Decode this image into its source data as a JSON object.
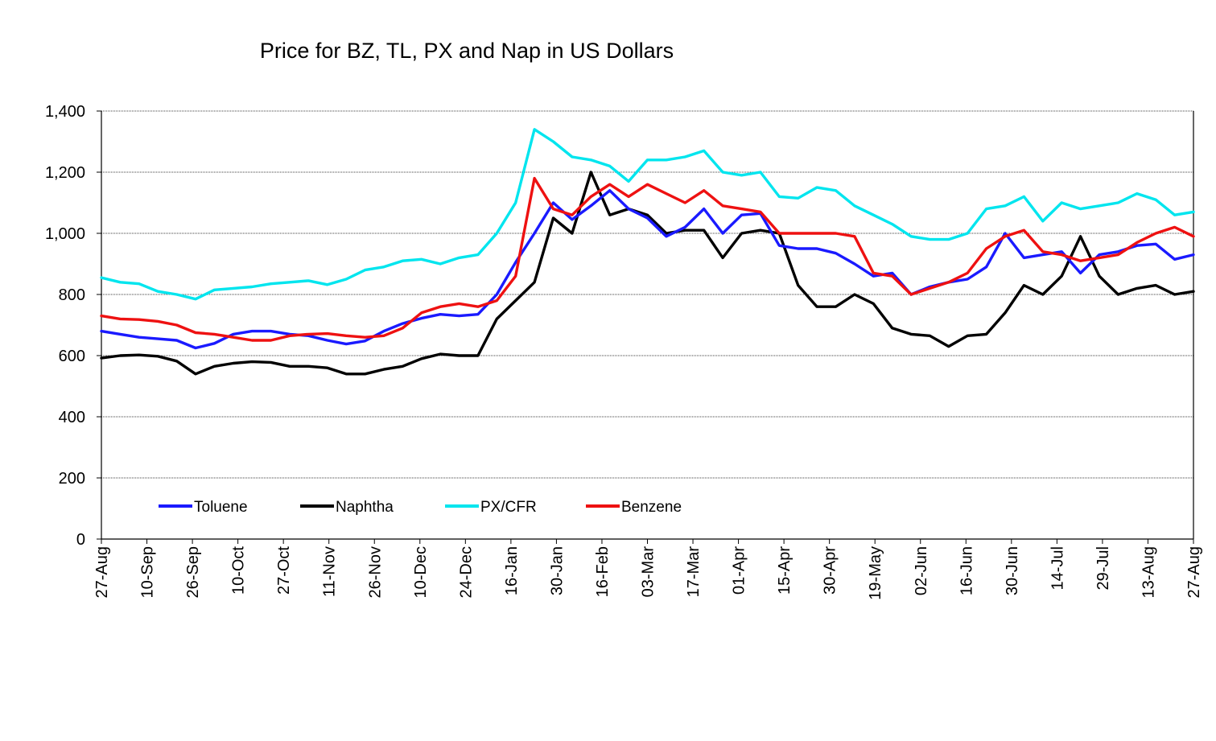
{
  "chart_data": {
    "type": "line",
    "title": "Price for BZ, TL, PX and Nap in US Dollars",
    "xlabel": "",
    "ylabel": "",
    "ylim": [
      0,
      1400
    ],
    "yticks": [
      0,
      200,
      400,
      600,
      800,
      1000,
      1200,
      1400
    ],
    "ytick_labels": [
      "0",
      "200",
      "400",
      "600",
      "800",
      "1,000",
      "1,200",
      "1,400"
    ],
    "x_tick_labels": [
      "27-Aug",
      "10-Sep",
      "26-Sep",
      "10-Oct",
      "27-Oct",
      "11-Nov",
      "26-Nov",
      "10-Dec",
      "24-Dec",
      "16-Jan",
      "30-Jan",
      "16-Feb",
      "03-Mar",
      "17-Mar",
      "01-Apr",
      "15-Apr",
      "30-Apr",
      "19-May",
      "02-Jun",
      "16-Jun",
      "30-Jun",
      "14-Jul",
      "29-Jul",
      "13-Aug",
      "27-Aug"
    ],
    "grid": "horizontal",
    "legend_position": "bottom-left",
    "series": [
      {
        "name": "Toluene",
        "color": "#1a1aff",
        "values": [
          680,
          670,
          660,
          655,
          650,
          625,
          640,
          670,
          680,
          680,
          670,
          665,
          650,
          638,
          648,
          680,
          705,
          722,
          735,
          730,
          735,
          800,
          905,
          1000,
          1100,
          1045,
          1090,
          1140,
          1080,
          1050,
          990,
          1020,
          1080,
          1000,
          1060,
          1065,
          960,
          950,
          950,
          935,
          900,
          860,
          870,
          800,
          825,
          840,
          850,
          890,
          1000,
          920,
          930,
          940,
          870,
          930,
          940,
          960,
          965,
          915,
          930
        ]
      },
      {
        "name": "Naphtha",
        "color": "#000000",
        "values": [
          592,
          600,
          602,
          598,
          582,
          540,
          565,
          575,
          580,
          578,
          565,
          565,
          560,
          540,
          540,
          555,
          565,
          590,
          605,
          600,
          600,
          720,
          780,
          840,
          1050,
          1000,
          1200,
          1060,
          1080,
          1060,
          1000,
          1010,
          1010,
          920,
          1000,
          1010,
          1000,
          830,
          760,
          760,
          800,
          770,
          690,
          670,
          665,
          630,
          665,
          670,
          740,
          830,
          800,
          860,
          990,
          860,
          800,
          820,
          830,
          800,
          810
        ]
      },
      {
        "name": "PX/CFR",
        "color": "#00e5ee",
        "values": [
          855,
          840,
          835,
          810,
          800,
          785,
          815,
          820,
          825,
          835,
          840,
          845,
          832,
          850,
          880,
          890,
          910,
          915,
          900,
          920,
          930,
          1000,
          1100,
          1340,
          1300,
          1250,
          1240,
          1220,
          1170,
          1240,
          1240,
          1250,
          1270,
          1200,
          1190,
          1200,
          1120,
          1115,
          1150,
          1140,
          1090,
          1060,
          1030,
          990,
          980,
          980,
          1000,
          1080,
          1090,
          1120,
          1040,
          1100,
          1080,
          1090,
          1100,
          1130,
          1110,
          1060,
          1070
        ]
      },
      {
        "name": "Benzene",
        "color": "#ee1111",
        "values": [
          730,
          720,
          718,
          712,
          700,
          675,
          670,
          660,
          650,
          650,
          665,
          670,
          672,
          665,
          660,
          665,
          690,
          740,
          760,
          770,
          760,
          780,
          860,
          1180,
          1080,
          1060,
          1120,
          1160,
          1120,
          1160,
          1130,
          1100,
          1140,
          1090,
          1080,
          1070,
          1000,
          1000,
          1000,
          1000,
          990,
          870,
          860,
          800,
          820,
          840,
          870,
          950,
          990,
          1010,
          940,
          930,
          910,
          920,
          930,
          970,
          1000,
          1020,
          990
        ]
      }
    ]
  }
}
